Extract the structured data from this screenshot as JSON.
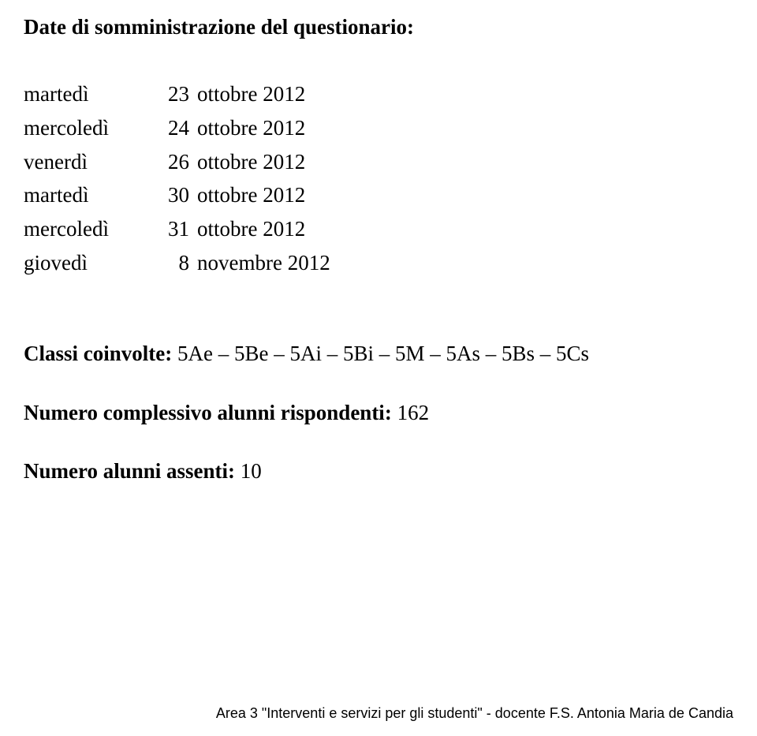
{
  "heading": "Date di somministrazione del questionario:",
  "dates": [
    {
      "weekday": "martedì",
      "day": "23",
      "rest": "ottobre 2012"
    },
    {
      "weekday": "mercoledì",
      "day": "24",
      "rest": "ottobre 2012"
    },
    {
      "weekday": "venerdì",
      "day": "26",
      "rest": "ottobre 2012"
    },
    {
      "weekday": "martedì",
      "day": "30",
      "rest": "ottobre 2012"
    },
    {
      "weekday": "mercoledì",
      "day": "31",
      "rest": "ottobre 2012"
    },
    {
      "weekday": "giovedì",
      "day": "8",
      "rest": "novembre 2012"
    }
  ],
  "classi": {
    "label": "Classi coinvolte:",
    "value": " 5Ae – 5Be – 5Ai – 5Bi – 5M – 5As – 5Bs – 5Cs"
  },
  "rispondenti": {
    "label": "Numero complessivo alunni  rispondenti:",
    "value": " 162"
  },
  "assenti": {
    "label": "Numero alunni assenti:",
    "value": " 10"
  },
  "footer": "Area 3 \"Interventi e servizi per gli studenti\"  - docente F.S. Antonia Maria de Candia"
}
